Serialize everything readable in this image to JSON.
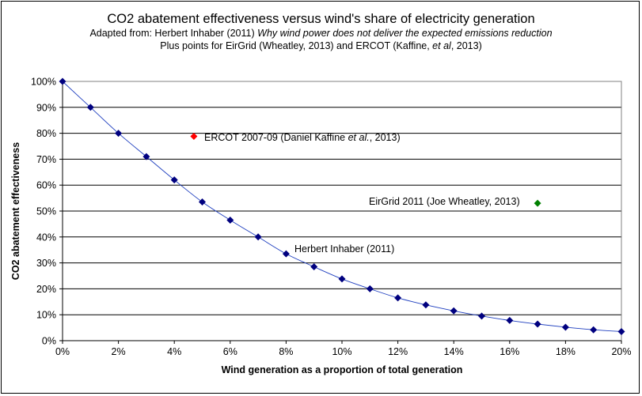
{
  "chart_data": {
    "type": "scatter",
    "title": "CO2 abatement effectiveness versus wind's share of electricity generation",
    "subtitle_line1": {
      "prefix": "Adapted from: Herbert Inhaber (2011) ",
      "italic": "Why wind power does not deliver the expected emissions reduction"
    },
    "subtitle_line2": {
      "prefix": "Plus points for EirGrid (Wheatley, 2013) and ERCOT (Kaffine, ",
      "italic": "et al",
      "suffix": ", 2013)"
    },
    "xlabel": "Wind generation as a proportion of total generation",
    "ylabel": "CO2 abatement effectiveness",
    "x_ticks": [
      "0%",
      "2%",
      "4%",
      "6%",
      "8%",
      "10%",
      "12%",
      "14%",
      "16%",
      "18%",
      "20%"
    ],
    "y_ticks": [
      "0%",
      "10%",
      "20%",
      "30%",
      "40%",
      "50%",
      "60%",
      "70%",
      "80%",
      "90%",
      "100%"
    ],
    "xlim": [
      0,
      20
    ],
    "ylim": [
      0,
      100
    ],
    "grid": "horizontal",
    "series": [
      {
        "label": "Herbert Inhaber (2011)",
        "color": "#00007f",
        "marker": "diamond",
        "smooth_line": true,
        "x": [
          0,
          1,
          2,
          3,
          4,
          5,
          6,
          7,
          8,
          9,
          10,
          11,
          12,
          13,
          14,
          15,
          16,
          17,
          18,
          19,
          20
        ],
        "y": [
          100,
          90,
          80,
          71,
          62,
          53.5,
          46.5,
          40,
          33.5,
          28.5,
          23.8,
          20,
          16.5,
          13.8,
          11.5,
          9.5,
          7.8,
          6.4,
          5.2,
          4.2,
          3.5
        ]
      },
      {
        "label_prefix": "ERCOT 2007-09 (Daniel Kaffine ",
        "label_italic": "et al.",
        "label_suffix": ", 2013)",
        "color": "#ff0000",
        "marker": "diamond",
        "x": [
          4.7
        ],
        "y": [
          78.8
        ]
      },
      {
        "label": "EirGrid 2011 (Joe Wheatley, 2013)",
        "color": "#008000",
        "marker": "diamond",
        "x": [
          17
        ],
        "y": [
          53
        ]
      }
    ]
  }
}
